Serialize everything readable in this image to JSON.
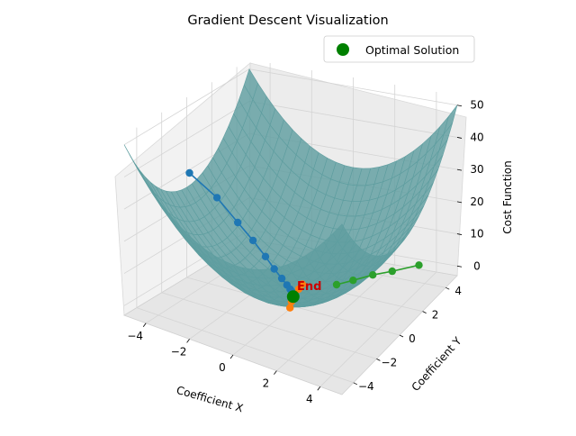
{
  "chart_data": {
    "type": "surface3d",
    "title": "Gradient Descent Visualization",
    "xlabel": "Coefficient X",
    "ylabel": "Coefficient Y",
    "zlabel": "Cost Function",
    "x_ticks": [
      "−4",
      "−2",
      "0",
      "2",
      "4"
    ],
    "y_ticks": [
      "−4",
      "−2",
      "0",
      "2",
      "4"
    ],
    "z_ticks": [
      "0",
      "10",
      "20",
      "30",
      "40",
      "50"
    ],
    "xlim": [
      -5,
      5
    ],
    "ylim": [
      -5,
      5
    ],
    "zlim": [
      -3,
      53
    ],
    "surface_color": "#5f9ea0",
    "legend": {
      "position": "upper-right",
      "label": "Optimal Solution",
      "color": "#008000"
    },
    "optimal_label": "End",
    "optimal_label_color": "#cc0000",
    "series": [
      {
        "color": "#1f77b4",
        "points": [
          [
            -4,
            -1.5,
            35
          ],
          [
            -3,
            -1,
            28
          ],
          [
            -2.2,
            -0.7,
            21
          ],
          [
            -1.6,
            -0.5,
            16
          ],
          [
            -1.1,
            -0.35,
            11.5
          ],
          [
            -0.75,
            -0.25,
            8
          ],
          [
            -0.45,
            -0.15,
            5.3
          ],
          [
            -0.25,
            -0.08,
            3.4
          ],
          [
            -0.12,
            -0.04,
            2.2
          ],
          [
            -0.05,
            -0.02,
            1.5
          ]
        ]
      },
      {
        "color": "#ff7f0e",
        "points": [
          [
            0.2,
            0.4,
            3
          ],
          [
            0.15,
            0.2,
            2
          ],
          [
            0.05,
            -0.1,
            1
          ],
          [
            0.2,
            -0.5,
            0.3
          ],
          [
            0.3,
            -0.8,
            -0.5
          ]
        ]
      },
      {
        "color": "#2ca02c",
        "points": [
          [
            4,
            3.5,
            4.5
          ],
          [
            3,
            3,
            3
          ],
          [
            2.3,
            2.6,
            2.2
          ],
          [
            1.7,
            2,
            1.6
          ],
          [
            1.2,
            1.5,
            1.1
          ]
        ]
      }
    ],
    "optimal": [
      0,
      0,
      0
    ]
  }
}
